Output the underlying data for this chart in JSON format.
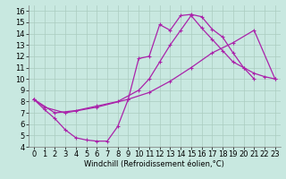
{
  "xlabel": "Windchill (Refroidissement éolien,°C)",
  "bg_color": "#c8e8e0",
  "line_color": "#aa22aa",
  "marker": "+",
  "markersize": 3.5,
  "linewidth": 0.9,
  "xlim": [
    -0.5,
    23.5
  ],
  "ylim": [
    4,
    16.5
  ],
  "xticks": [
    0,
    1,
    2,
    3,
    4,
    5,
    6,
    7,
    8,
    9,
    10,
    11,
    12,
    13,
    14,
    15,
    16,
    17,
    18,
    19,
    20,
    21,
    22,
    23
  ],
  "yticks": [
    4,
    5,
    6,
    7,
    8,
    9,
    10,
    11,
    12,
    13,
    14,
    15,
    16
  ],
  "grid_color": "#aaccc0",
  "xlabel_fontsize": 6,
  "tick_fontsize": 6,
  "curve1_x": [
    0,
    1,
    2,
    3,
    4,
    5,
    6,
    7,
    8,
    9,
    10,
    11,
    12,
    13,
    14,
    15,
    16,
    17,
    18,
    19,
    20,
    21
  ],
  "curve1_y": [
    8.2,
    7.3,
    6.5,
    5.5,
    4.8,
    4.6,
    4.5,
    4.5,
    5.8,
    8.2,
    11.8,
    12.0,
    14.8,
    14.3,
    15.6,
    15.7,
    15.5,
    14.4,
    13.7,
    12.3,
    11.0,
    10.0
  ],
  "curve2_x": [
    0,
    1,
    3,
    6,
    9,
    11,
    13,
    15,
    17,
    19,
    21,
    23
  ],
  "curve2_y": [
    8.2,
    7.5,
    7.0,
    7.5,
    8.2,
    8.8,
    9.8,
    11.0,
    12.3,
    13.2,
    14.3,
    10.0
  ],
  "curve3_x": [
    0,
    2,
    4,
    6,
    8,
    10,
    11,
    12,
    13,
    14,
    15,
    16,
    17,
    18,
    19,
    20,
    21,
    22,
    23
  ],
  "curve3_y": [
    8.2,
    7.0,
    7.2,
    7.6,
    8.0,
    9.0,
    10.0,
    11.5,
    13.0,
    14.3,
    15.6,
    14.5,
    13.5,
    12.5,
    11.5,
    11.0,
    10.5,
    10.2,
    10.0
  ]
}
